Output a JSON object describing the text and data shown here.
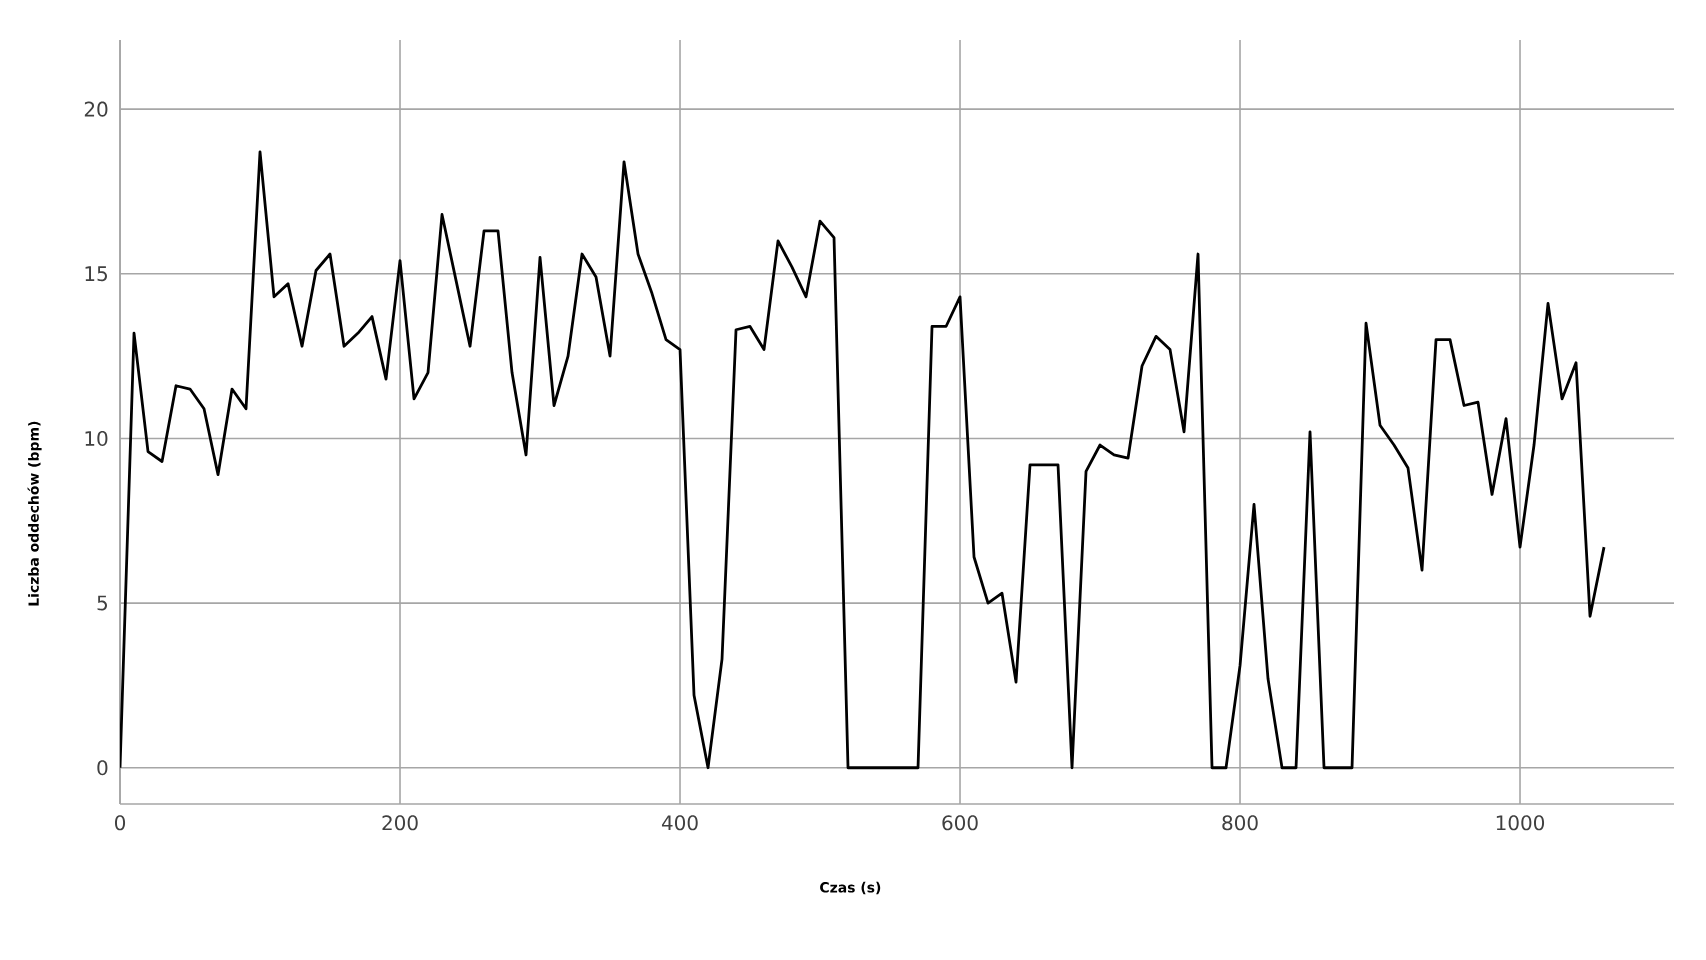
{
  "chart_data": {
    "type": "line",
    "xlabel": "Czas (s)",
    "ylabel": "Liczba oddechów  (bpm)",
    "x": [
      0,
      10,
      20,
      30,
      40,
      50,
      60,
      70,
      80,
      90,
      100,
      110,
      120,
      130,
      140,
      150,
      160,
      170,
      180,
      190,
      200,
      210,
      220,
      230,
      240,
      250,
      260,
      270,
      280,
      290,
      300,
      310,
      320,
      330,
      340,
      350,
      360,
      370,
      380,
      390,
      400,
      410,
      420,
      430,
      440,
      450,
      460,
      470,
      480,
      490,
      500,
      510,
      520,
      530,
      540,
      550,
      560,
      570,
      580,
      590,
      600,
      610,
      620,
      630,
      640,
      650,
      660,
      670,
      680,
      690,
      700,
      710,
      720,
      730,
      740,
      750,
      760,
      770,
      780,
      790,
      800,
      810,
      820,
      830,
      840,
      850,
      860,
      870,
      880,
      890,
      900,
      910,
      920,
      930,
      940,
      950,
      960,
      970,
      980,
      990,
      1000,
      1010,
      1020,
      1030,
      1040,
      1050,
      1060
    ],
    "series": [
      {
        "color": "#000000",
        "values": [
          0,
          13.2,
          9.6,
          9.3,
          11.6,
          11.5,
          10.9,
          8.9,
          11.5,
          10.9,
          18.7,
          14.3,
          14.7,
          12.8,
          15.1,
          15.6,
          12.8,
          13.2,
          13.7,
          11.8,
          15.4,
          11.2,
          12.0,
          16.8,
          14.8,
          12.8,
          16.3,
          16.3,
          12.0,
          9.5,
          15.5,
          11.0,
          12.5,
          15.6,
          14.9,
          12.5,
          18.4,
          15.6,
          14.4,
          13.0,
          12.7,
          2.2,
          0,
          3.3,
          13.3,
          13.4,
          12.7,
          16.0,
          15.2,
          14.3,
          16.6,
          16.1,
          0,
          0,
          0,
          0,
          0,
          0,
          13.4,
          13.4,
          14.3,
          6.4,
          5.0,
          5.3,
          2.6,
          9.2,
          9.2,
          9.2,
          0,
          9.0,
          9.8,
          9.5,
          9.4,
          12.2,
          13.1,
          12.7,
          10.2,
          15.6,
          0,
          0,
          3.1,
          8.0,
          2.7,
          0,
          0,
          10.2,
          0,
          0,
          0,
          13.5,
          10.4,
          9.8,
          9.1,
          6.0,
          13.0,
          13.0,
          11.0,
          11.1,
          8.3,
          10.6,
          6.7,
          9.8,
          14.1,
          11.2,
          12.3,
          4.6,
          6.7
        ]
      }
    ],
    "xlim": [
      0,
      1110
    ],
    "ylim": [
      -1.1,
      22.1
    ],
    "xticks": [
      0,
      200,
      400,
      600,
      800,
      1000
    ],
    "yticks": [
      0,
      5,
      10,
      15,
      20
    ],
    "grid": true,
    "marker": "none",
    "line_style": "solid"
  }
}
